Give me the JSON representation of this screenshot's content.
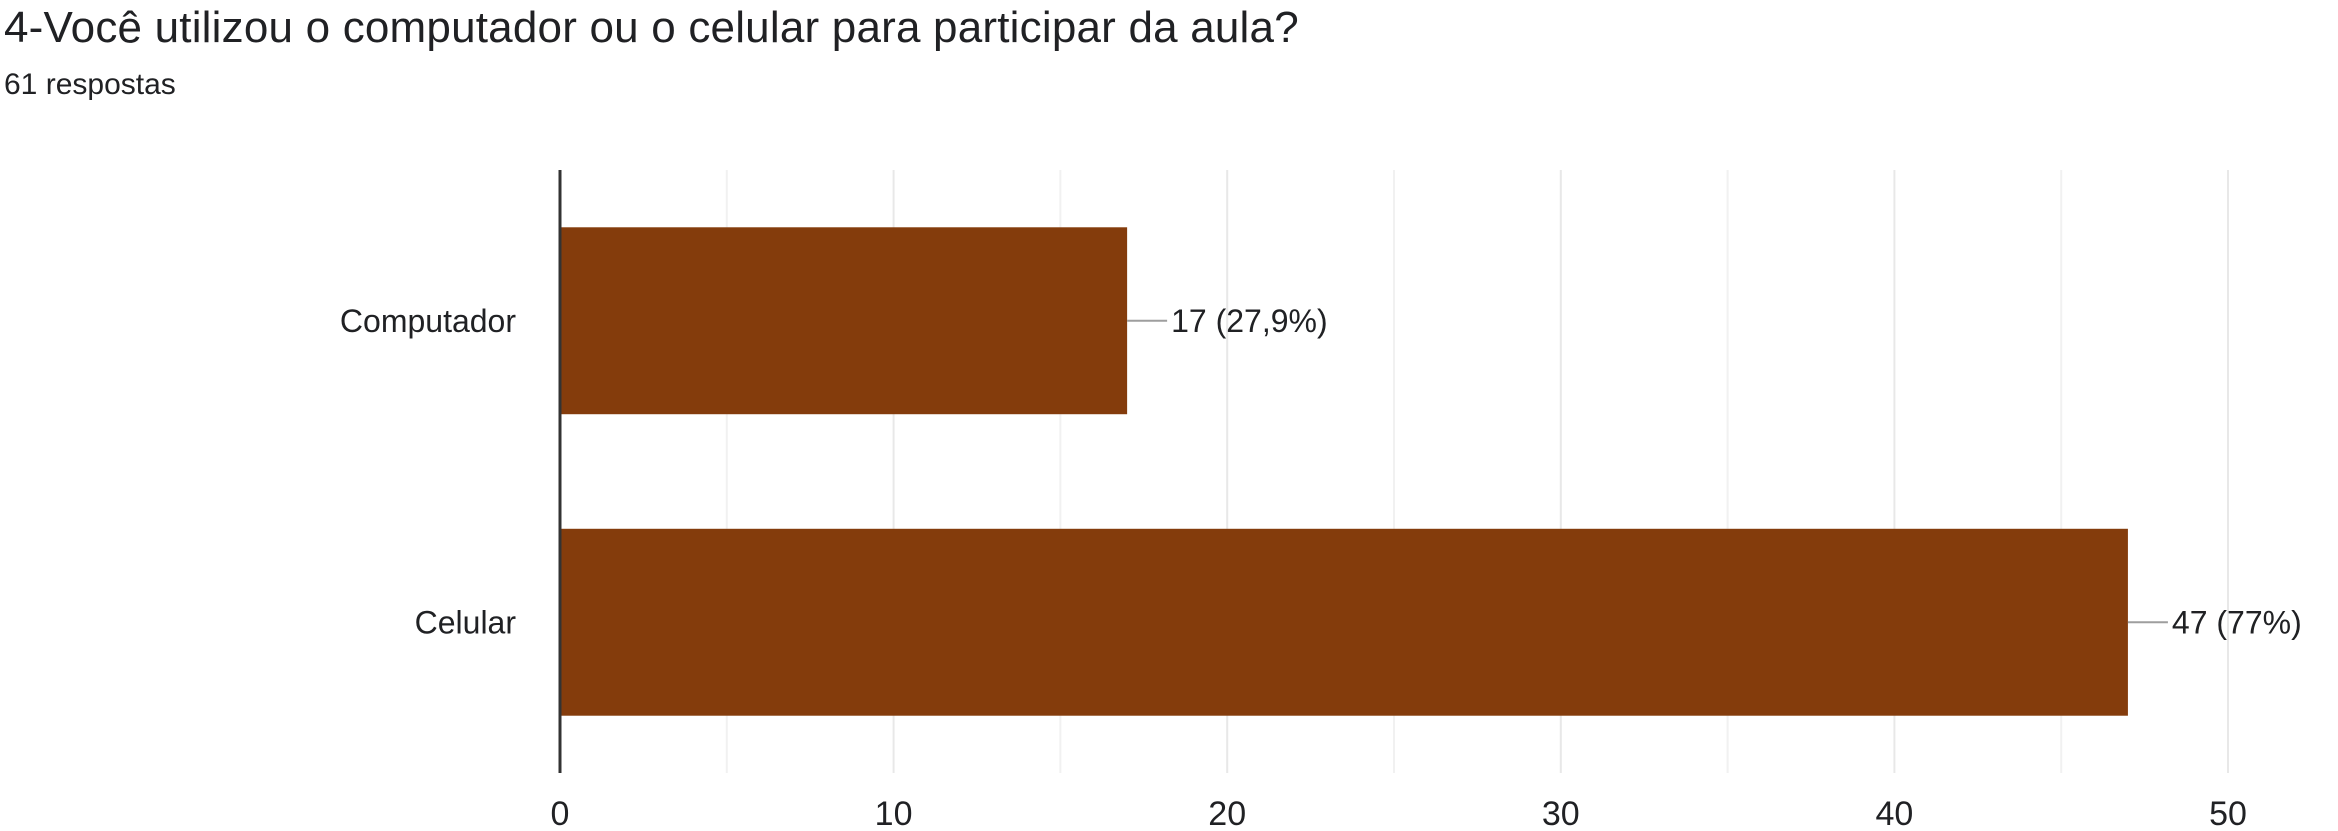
{
  "question": {
    "title": "4-Você utilizou o computador ou o celular para participar da aula?",
    "response_count": "61 respostas"
  },
  "colors": {
    "bar": "#843c0c",
    "grid": "#e8e8e8",
    "axis": "#333333"
  },
  "chart_data": {
    "type": "bar",
    "orientation": "horizontal",
    "categories": [
      "Computador",
      "Celular"
    ],
    "values": [
      17,
      47
    ],
    "data_labels": [
      "17 (27,9%)",
      "47 (77%)"
    ],
    "xlim": [
      0,
      50
    ],
    "x_ticks": [
      0,
      10,
      20,
      30,
      40,
      50
    ],
    "x_tick_labels": [
      "0",
      "10",
      "20",
      "30",
      "40",
      "50"
    ],
    "minor_gridlines": true,
    "grid": true
  }
}
